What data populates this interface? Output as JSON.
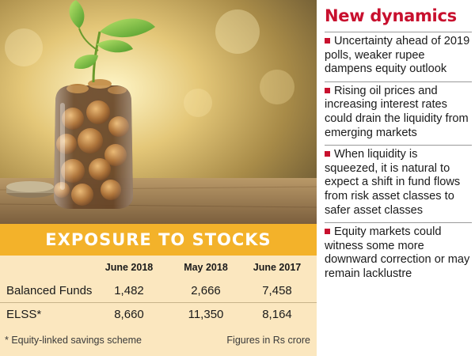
{
  "photo": {
    "subject": "money-plant-jar-icon"
  },
  "table": {
    "title": "EXPOSURE TO STOCKS",
    "columns": [
      "June 2018",
      "May 2018",
      "June 2017"
    ],
    "rows": [
      {
        "label": "Balanced Funds",
        "values": [
          "1,482",
          "2,666",
          "7,458"
        ]
      },
      {
        "label": "ELSS*",
        "values": [
          "8,660",
          "11,350",
          "8,164"
        ]
      }
    ],
    "footnote": "* Equity-linked savings scheme",
    "unit_note": "Figures in Rs crore"
  },
  "sidebar": {
    "title": "New dynamics",
    "points": [
      "Uncertainty ahead of 2019 polls, weaker rupee dampens equity outlook",
      "Rising oil prices and increasing interest rates could drain the liquidity from emerging markets",
      "When liquidity is squeezed, it is natural to expect a shift in fund flows from risk asset classes to safer asset classes",
      "Equity markets could witness some more downward correction or may remain lacklustre"
    ]
  },
  "colors": {
    "accent_red": "#c8102e",
    "title_bar": "#f3b22a",
    "table_bg": "#fbe7bf"
  }
}
